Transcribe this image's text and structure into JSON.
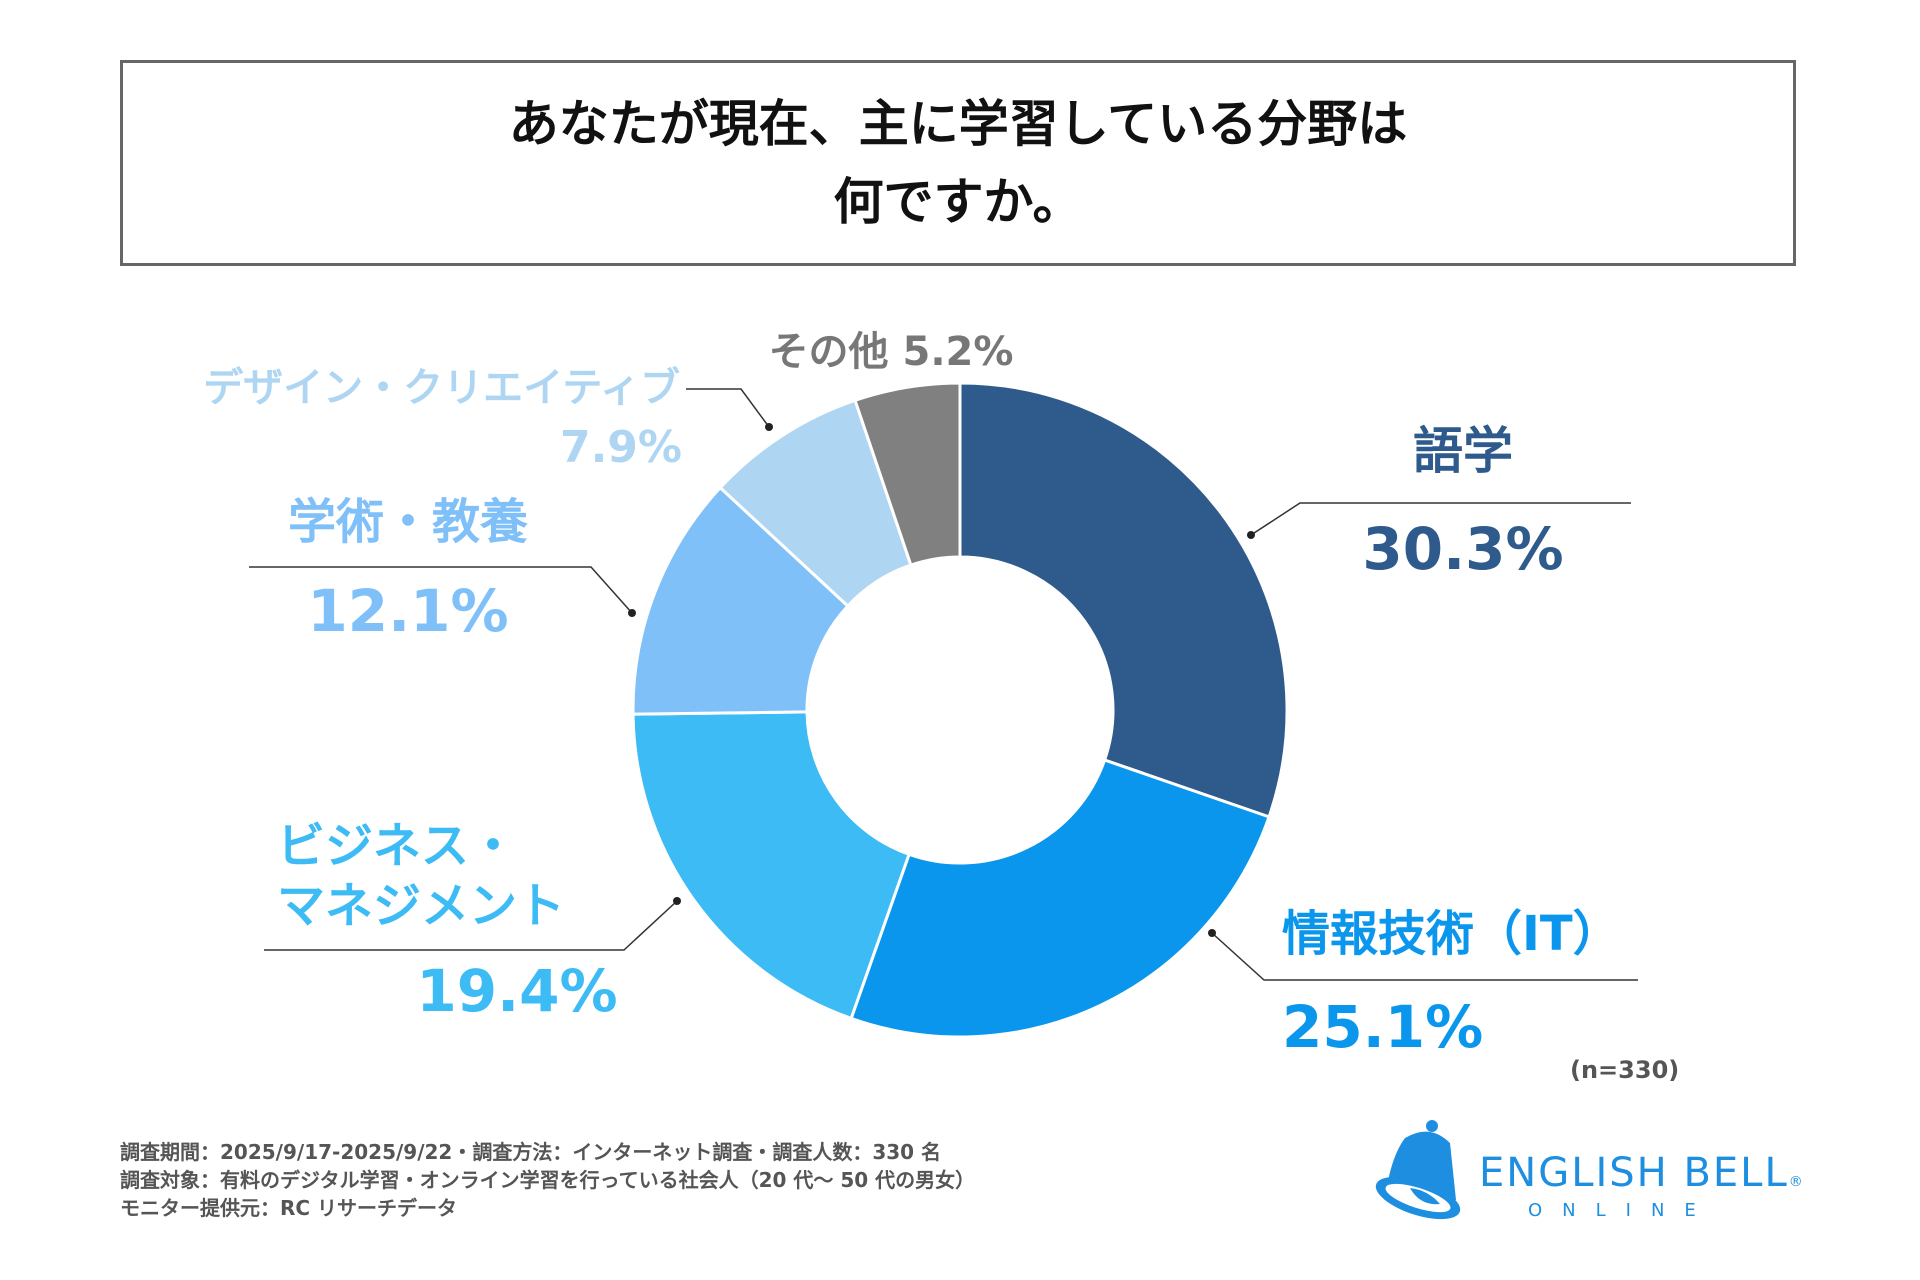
{
  "title": {
    "line1": "あなたが現在、主に学習している分野は",
    "line2": "何ですか。"
  },
  "chart_data": {
    "type": "pie",
    "donut": true,
    "title": "あなたが現在、主に学習している分野は何ですか。",
    "slices": [
      {
        "label": "語学",
        "value": 30.3,
        "value_label": "30.3%",
        "color": "#2e5a8c"
      },
      {
        "label": "情報技術（IT）",
        "value": 25.1,
        "value_label": "25.1%",
        "color": "#0a96ec"
      },
      {
        "label": "ビジネス・マネジメント",
        "value": 19.4,
        "value_label": "19.4%",
        "color": "#3dbbf5"
      },
      {
        "label": "学術・教養",
        "value": 12.1,
        "value_label": "12.1%",
        "color": "#80c0f8"
      },
      {
        "label": "デザイン・クリエイティブ",
        "value": 7.9,
        "value_label": "7.9%",
        "color": "#aed6f3"
      },
      {
        "label": "その他",
        "value": 5.2,
        "value_label": "5.2%",
        "color": "#808080"
      }
    ]
  },
  "labels": {
    "biz_line1": "ビジネス・",
    "biz_line2": "マネジメント",
    "other": "その他 5.2%"
  },
  "sample": "(n=330)",
  "footer": [
    "調査期間：2025/9/17-2025/9/22・調査方法：インターネット調査・調査人数：330 名",
    "調査対象：有料のデジタル学習・オンライン学習を行っている社会人（20 代～ 50 代の男女）",
    "モニター提供元：RC リサーチデータ"
  ],
  "logo": {
    "name": "ENGLISH BELL",
    "reg": "®",
    "sub": "ONLINE",
    "color": "#1e8fe0"
  }
}
